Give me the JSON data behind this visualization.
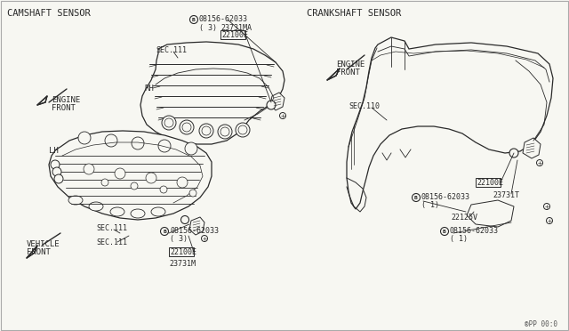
{
  "bg_color": "#f7f7f2",
  "line_color": "#2a2a2a",
  "text_color": "#2a2a2a",
  "section_label_left": "CAMSHAFT SENSOR",
  "section_label_right": "CRANKSHAFT SENSOR",
  "footer": "®PP 00:0",
  "fs_section": 7.5,
  "fs_label": 6.5,
  "fs_part": 6.0,
  "fs_small": 5.5
}
